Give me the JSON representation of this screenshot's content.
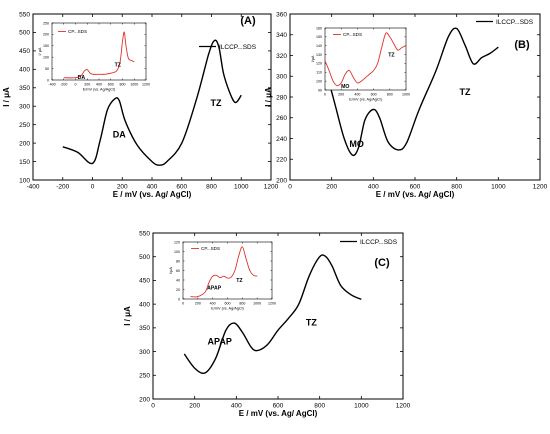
{
  "chart_data": [
    {
      "type": "line",
      "panel_label": "(A)",
      "xlabel": "E / mV (vs. Ag/ AgCl)",
      "ylabel": "I / μA",
      "xlim": [
        -400,
        1200
      ],
      "ylim": [
        100,
        550
      ],
      "x_ticks": [
        -400,
        -200,
        0,
        200,
        400,
        600,
        800,
        1000,
        1200
      ],
      "y_ticks": [
        100,
        150,
        200,
        250,
        300,
        350,
        400,
        450,
        500,
        550
      ],
      "grid": false,
      "legend_position": "top-right",
      "series": [
        {
          "name": "ILCCP...SDS",
          "x": [
            -200,
            -100,
            0,
            50,
            100,
            150,
            180,
            220,
            300,
            400,
            450,
            500,
            600,
            700,
            780,
            820,
            850,
            880,
            920,
            960,
            1000
          ],
          "y": [
            190,
            175,
            145,
            205,
            290,
            320,
            315,
            260,
            195,
            150,
            140,
            150,
            200,
            320,
            440,
            478,
            460,
            390,
            340,
            310,
            330
          ]
        }
      ],
      "annotations": [
        {
          "text": "DA",
          "x": 180,
          "y": 215
        },
        {
          "text": "TZ",
          "x": 830,
          "y": 300
        }
      ],
      "inset": {
        "legend": "CP...SDS",
        "xlabel": "E/mV (vs. Ag/AgCl)",
        "ylabel": "I/ μA",
        "xlim": [
          -400,
          1200
        ],
        "ylim": [
          0,
          250
        ],
        "x_ticks": [
          -400,
          -200,
          0,
          200,
          400,
          600,
          800,
          1000,
          1200
        ],
        "y_ticks": [
          0,
          50,
          100,
          150,
          200,
          250
        ],
        "x": [
          -200,
          0,
          100,
          150,
          200,
          250,
          300,
          400,
          500,
          600,
          700,
          760,
          800,
          830,
          860,
          900,
          960,
          1000
        ],
        "y": [
          10,
          10,
          20,
          40,
          45,
          30,
          25,
          25,
          25,
          30,
          40,
          80,
          170,
          210,
          150,
          95,
          85,
          80
        ],
        "annotations": [
          {
            "text": "DA",
            "x": 100,
            "y": 5
          },
          {
            "text": "TZ",
            "x": 720,
            "y": 60
          }
        ]
      }
    },
    {
      "type": "line",
      "panel_label": "(B)",
      "xlabel": "E / mV (vs. Ag/ AgCl)",
      "ylabel": "I / μA",
      "xlim": [
        0,
        1200
      ],
      "ylim": [
        200,
        360
      ],
      "x_ticks": [
        0,
        200,
        400,
        600,
        800,
        1000,
        1200
      ],
      "y_ticks": [
        200,
        220,
        240,
        260,
        280,
        300,
        320,
        340,
        360
      ],
      "grid": false,
      "legend_position": "top-right",
      "series": [
        {
          "name": "ILCCP...SDS",
          "x": [
            180,
            220,
            260,
            300,
            330,
            360,
            400,
            430,
            470,
            520,
            560,
            620,
            700,
            760,
            800,
            840,
            880,
            920,
            960,
            1000
          ],
          "y": [
            300,
            270,
            240,
            224,
            232,
            258,
            268,
            260,
            237,
            229,
            236,
            268,
            305,
            338,
            346,
            330,
            312,
            318,
            322,
            328
          ]
        }
      ],
      "annotations": [
        {
          "text": "MO",
          "x": 320,
          "y": 232
        },
        {
          "text": "TZ",
          "x": 840,
          "y": 282
        }
      ],
      "inset": {
        "legend": "CP...SDS",
        "xlabel": "E/mV (vs. Ag/AgCl)",
        "ylabel": "I/μA",
        "xlim": [
          0,
          1000
        ],
        "ylim": [
          90,
          160
        ],
        "x_ticks": [
          0,
          200,
          400,
          600,
          800,
          1000
        ],
        "y_ticks": [
          90,
          100,
          110,
          120,
          130,
          140,
          150,
          160
        ],
        "x": [
          0,
          50,
          100,
          150,
          200,
          250,
          300,
          350,
          400,
          450,
          500,
          550,
          600,
          650,
          700,
          750,
          800,
          850,
          900,
          950,
          1000
        ],
        "y": [
          123,
          112,
          100,
          95,
          98,
          108,
          112,
          104,
          98,
          100,
          104,
          108,
          112,
          120,
          138,
          154,
          150,
          142,
          135,
          138,
          140
        ],
        "annotations": [
          {
            "text": "MO",
            "x": 250,
            "y": 92
          },
          {
            "text": "TZ",
            "x": 820,
            "y": 128
          }
        ]
      }
    },
    {
      "type": "line",
      "panel_label": "(C)",
      "xlabel": "E / mV (vs. Ag/ AgCl)",
      "ylabel": "I / μA",
      "xlim": [
        0,
        1200
      ],
      "ylim": [
        200,
        550
      ],
      "x_ticks": [
        0,
        200,
        400,
        600,
        800,
        1000,
        1200
      ],
      "y_ticks": [
        200,
        250,
        300,
        350,
        400,
        450,
        500,
        550
      ],
      "grid": false,
      "legend_position": "top-right",
      "series": [
        {
          "name": "ILCCP...SDS",
          "x": [
            150,
            200,
            250,
            300,
            350,
            390,
            430,
            470,
            500,
            550,
            600,
            650,
            700,
            750,
            800,
            830,
            860,
            900,
            950,
            1000
          ],
          "y": [
            295,
            265,
            255,
            285,
            345,
            360,
            340,
            310,
            302,
            315,
            345,
            370,
            400,
            460,
            500,
            500,
            480,
            440,
            420,
            410
          ]
        }
      ],
      "annotations": [
        {
          "text": "APAP",
          "x": 320,
          "y": 315
        },
        {
          "text": "TZ",
          "x": 760,
          "y": 355
        }
      ],
      "inset": {
        "legend": "CP...SDS",
        "xlabel": "E/mV (vs. Ag/AgCl)",
        "ylabel": "I/μA",
        "xlim": [
          0,
          1200
        ],
        "ylim": [
          0,
          120
        ],
        "x_ticks": [
          0,
          200,
          400,
          600,
          800,
          1000,
          1200
        ],
        "y_ticks": [
          0,
          20,
          40,
          60,
          80,
          100,
          120
        ],
        "x": [
          100,
          200,
          300,
          350,
          400,
          450,
          500,
          550,
          600,
          650,
          700,
          750,
          800,
          850,
          900,
          950,
          1000
        ],
        "y": [
          5,
          5,
          15,
          35,
          48,
          50,
          45,
          48,
          44,
          46,
          60,
          90,
          110,
          85,
          60,
          50,
          48
        ],
        "annotations": [
          {
            "text": "APAP",
            "x": 420,
            "y": 20
          },
          {
            "text": "TZ",
            "x": 760,
            "y": 36
          }
        ]
      }
    }
  ]
}
